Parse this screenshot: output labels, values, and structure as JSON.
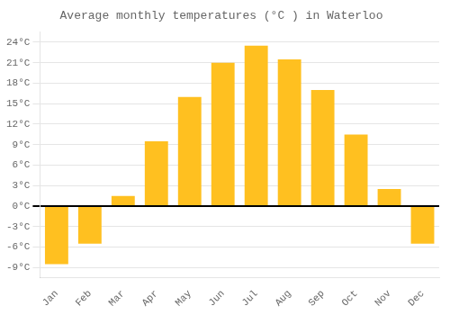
{
  "chart_data": {
    "type": "bar",
    "title": "Average monthly temperatures (°C ) in Waterloo",
    "categories": [
      "Jan",
      "Feb",
      "Mar",
      "Apr",
      "May",
      "Jun",
      "Jul",
      "Aug",
      "Sep",
      "Oct",
      "Nov",
      "Dec"
    ],
    "values": [
      -8.5,
      -5.5,
      1.5,
      9.5,
      16.0,
      21.0,
      23.5,
      21.5,
      17.0,
      10.5,
      2.5,
      -5.5
    ],
    "color": "#FFC020",
    "ylim": [
      -10.5,
      25.5
    ],
    "yticks": [
      {
        "value": -9,
        "label": "-9°C"
      },
      {
        "value": -6,
        "label": "-6°C"
      },
      {
        "value": -3,
        "label": "-3°C"
      },
      {
        "value": 0,
        "label": "0°C"
      },
      {
        "value": 3,
        "label": "3°C"
      },
      {
        "value": 6,
        "label": "6°C"
      },
      {
        "value": 9,
        "label": "9°C"
      },
      {
        "value": 12,
        "label": "12°C"
      },
      {
        "value": 15,
        "label": "15°C"
      },
      {
        "value": 18,
        "label": "18°C"
      },
      {
        "value": 21,
        "label": "21°C"
      },
      {
        "value": 24,
        "label": "24°C"
      }
    ],
    "grid": true
  }
}
